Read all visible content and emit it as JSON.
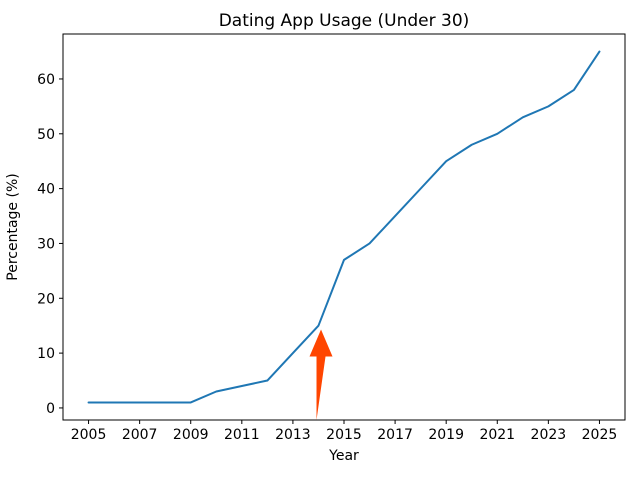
{
  "chart_data": {
    "type": "line",
    "title": "Dating App Usage (Under 30)",
    "xlabel": "Year",
    "ylabel": "Percentage (%)",
    "x": [
      2005,
      2006,
      2007,
      2008,
      2009,
      2010,
      2011,
      2012,
      2013,
      2014,
      2015,
      2016,
      2017,
      2018,
      2019,
      2020,
      2021,
      2022,
      2023,
      2024,
      2025
    ],
    "values": [
      1,
      1,
      1,
      1,
      1,
      3,
      4,
      5,
      10,
      15,
      27,
      30,
      35,
      40,
      45,
      48,
      50,
      53,
      55,
      58,
      65
    ],
    "xticks": [
      2005,
      2007,
      2009,
      2011,
      2013,
      2015,
      2017,
      2019,
      2021,
      2023,
      2025
    ],
    "yticks": [
      0,
      10,
      20,
      30,
      40,
      50,
      60
    ],
    "xlim": [
      2004,
      2026
    ],
    "ylim": [
      -2.2,
      68.2
    ],
    "grid": false,
    "legend_position": "none",
    "line_color": "#1f77b4",
    "spine_color": "#000000",
    "annotation": {
      "type": "up-arrow",
      "x": 2014.1,
      "y_from": -2.2,
      "y_to": 14.3,
      "color": "#ff4500"
    }
  }
}
